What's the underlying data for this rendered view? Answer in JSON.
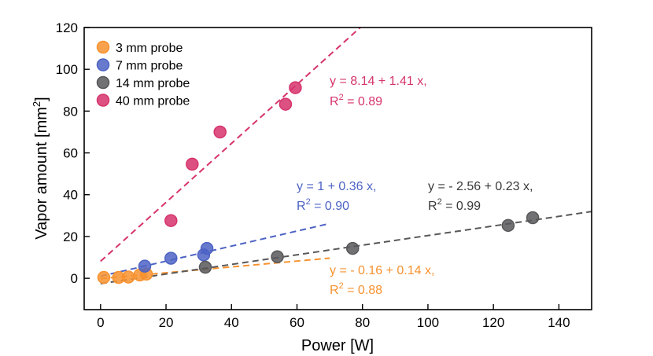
{
  "chart_data": {
    "type": "scatter",
    "title": "",
    "xlabel": "Power [W]",
    "ylabel_main": "Vapor amount [mm",
    "ylabel_sup": "2",
    "ylabel_close": "]",
    "xlim": [
      -5,
      150
    ],
    "ylim": [
      -15,
      120
    ],
    "xticks": [
      0,
      20,
      40,
      60,
      80,
      100,
      120,
      140
    ],
    "yticks": [
      0,
      20,
      40,
      60,
      80,
      100,
      120
    ],
    "xtick_labels": [
      "0",
      "20",
      "40",
      "60",
      "80",
      "100",
      "120",
      "140"
    ],
    "ytick_labels": [
      "0",
      "20",
      "40",
      "60",
      "80",
      "100",
      "120"
    ],
    "grid": false,
    "legend_position": "top-left",
    "series": [
      {
        "name": "3 mm probe",
        "color": "#f7922f",
        "x": [
          1,
          5.5,
          8.5,
          12,
          14
        ],
        "y": [
          0.4,
          0.4,
          0.6,
          1.6,
          2.0
        ],
        "fit": {
          "intercept": -0.16,
          "slope": 0.14,
          "x_range": [
            0,
            70
          ]
        },
        "eq_line1": "y = - 0.16 + 0.14 x,",
        "eq_r2_prefix": "R",
        "eq_r2_sup": "2",
        "eq_r2_value": " = 0.88"
      },
      {
        "name": "7 mm probe",
        "color": "#4d63c4",
        "x": [
          13.5,
          21.5,
          31.5,
          32.5
        ],
        "y": [
          5.8,
          9.6,
          11.2,
          14.3
        ],
        "fit": {
          "intercept": 1,
          "slope": 0.36,
          "x_range": [
            0,
            70
          ]
        },
        "eq_line1": "y = 1 + 0.36 x,",
        "eq_r2_prefix": "R",
        "eq_r2_sup": "2",
        "eq_r2_value": " = 0.90"
      },
      {
        "name": "14 mm probe",
        "color": "#58585a",
        "x": [
          32,
          54,
          77,
          124.5,
          132
        ],
        "y": [
          5.3,
          10.3,
          14.3,
          25.3,
          29.0
        ],
        "fit": {
          "intercept": -2.56,
          "slope": 0.23,
          "x_range": [
            0,
            150
          ]
        },
        "eq_line1": "y = - 2.56 + 0.23 x,",
        "eq_r2_prefix": "R",
        "eq_r2_sup": "2",
        "eq_r2_value": " = 0.99"
      },
      {
        "name": "40 mm probe",
        "color": "#d6336c",
        "x": [
          21.5,
          28,
          36.5,
          56.5,
          59.5
        ],
        "y": [
          27.6,
          54.6,
          70.0,
          83.3,
          91.2
        ],
        "fit": {
          "intercept": 8.14,
          "slope": 1.41,
          "x_range": [
            0,
            80
          ]
        },
        "eq_line1": "y = 8.14 + 1.41 x,",
        "eq_r2_prefix": "R",
        "eq_r2_sup": "2",
        "eq_r2_value": " = 0.89"
      }
    ]
  }
}
